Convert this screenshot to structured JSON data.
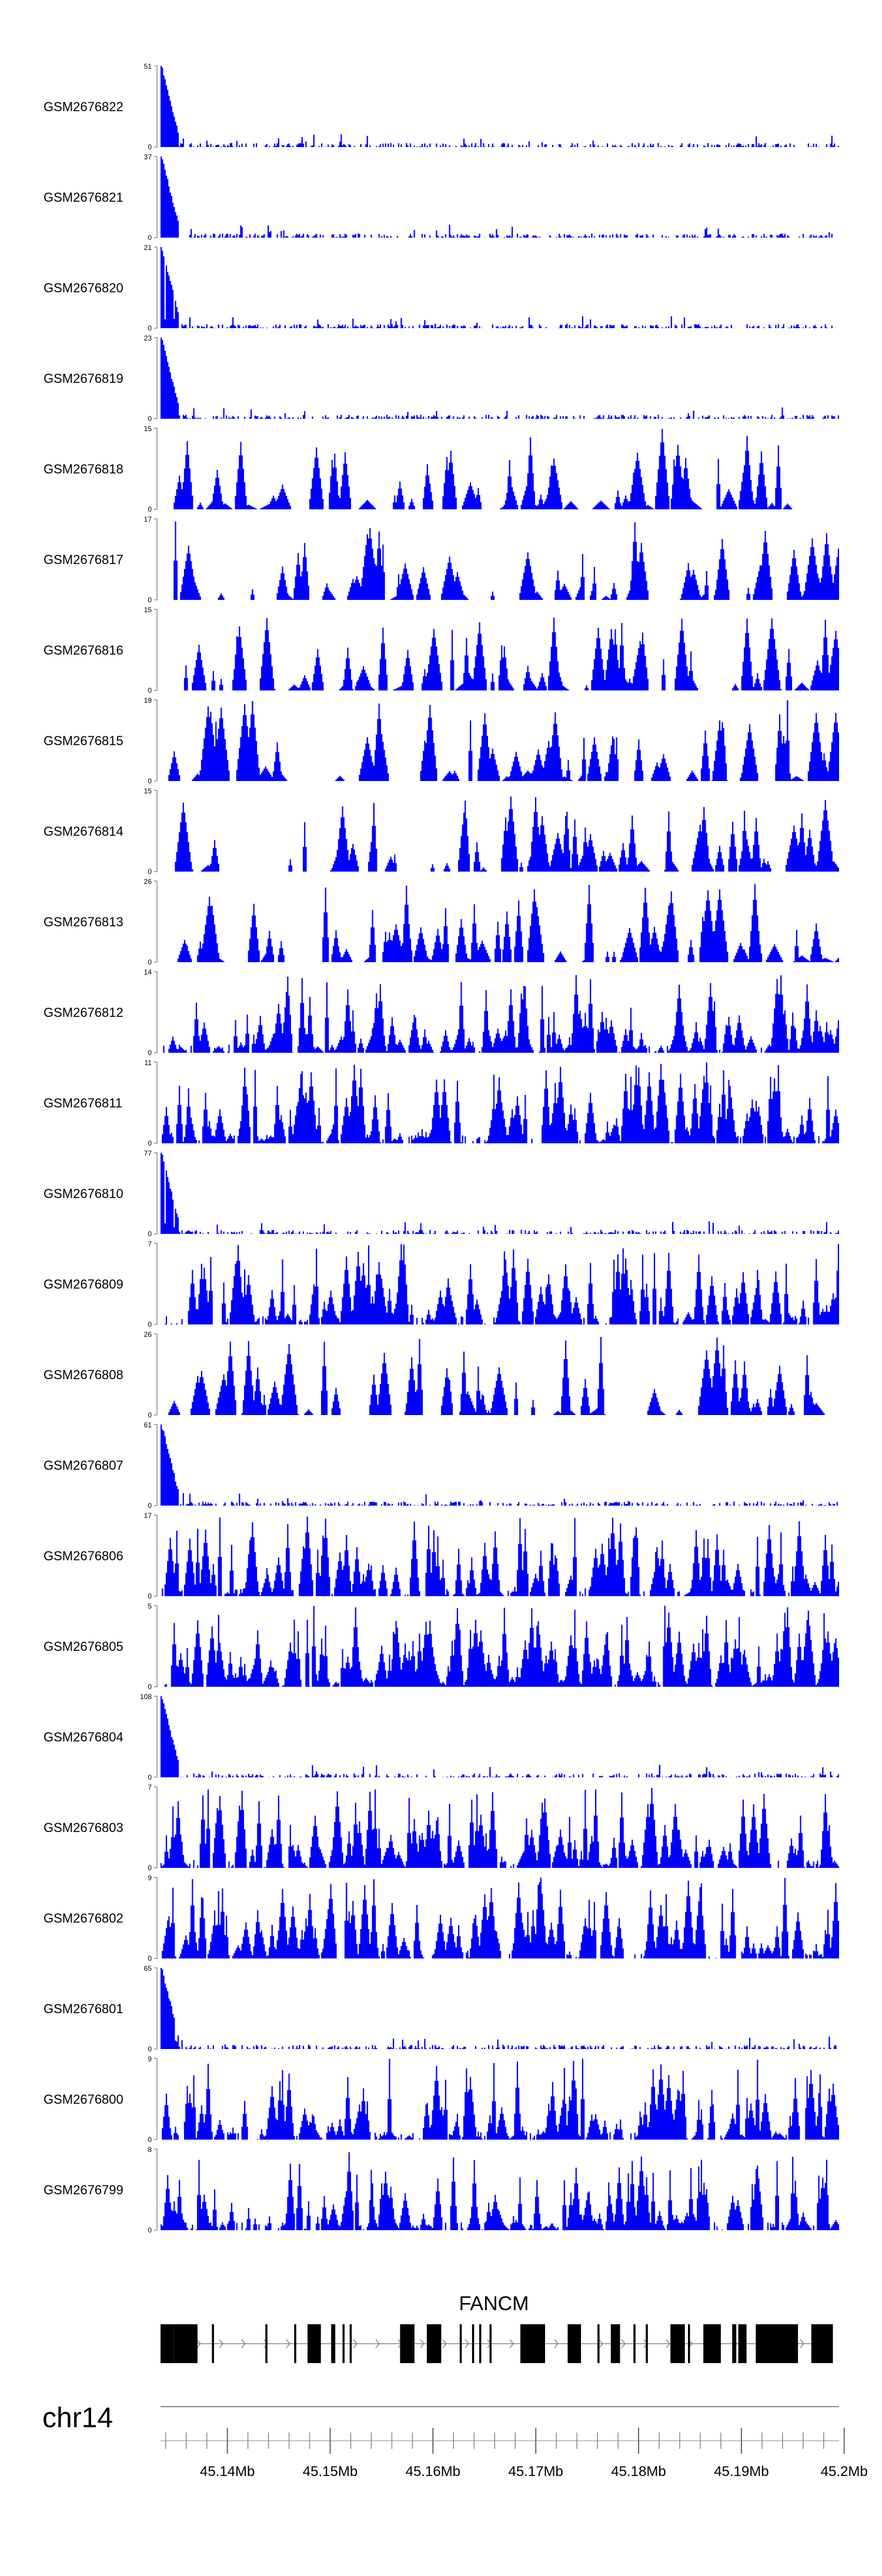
{
  "chart_data": {
    "type": "area",
    "genome_region": {
      "chromosome": "chr14",
      "x_unit": "Mb",
      "xlim": [
        45.1335,
        45.1995
      ],
      "ticks": [
        {
          "value": 45.14,
          "label": "45.14Mb"
        },
        {
          "value": 45.15,
          "label": "45.15Mb"
        },
        {
          "value": 45.16,
          "label": "45.16Mb"
        },
        {
          "value": 45.17,
          "label": "45.17Mb"
        },
        {
          "value": 45.18,
          "label": "45.18Mb"
        },
        {
          "value": 45.19,
          "label": "45.19Mb"
        },
        {
          "value": 45.2,
          "label": "45.2Mb"
        }
      ]
    },
    "fill_color": "#0000FF",
    "gene": {
      "name": "FANCM",
      "strand": "+",
      "exons_mb": [
        [
          45.1335,
          45.1348
        ],
        [
          45.1348,
          45.1371
        ],
        [
          45.1385,
          45.1387
        ],
        [
          45.1437,
          45.1439
        ],
        [
          45.1465,
          45.1467
        ],
        [
          45.1478,
          45.1491
        ],
        [
          45.1501,
          45.1505
        ],
        [
          45.1512,
          45.1514
        ],
        [
          45.1519,
          45.1521
        ],
        [
          45.1568,
          45.1582
        ],
        [
          45.1594,
          45.1608
        ],
        [
          45.1626,
          45.1628
        ],
        [
          45.1638,
          45.164
        ],
        [
          45.1645,
          45.1647
        ],
        [
          45.1655,
          45.1657
        ],
        [
          45.1685,
          45.1709
        ],
        [
          45.1731,
          45.1744
        ],
        [
          45.176,
          45.1762
        ],
        [
          45.1773,
          45.1782
        ],
        [
          45.1795,
          45.1797
        ],
        [
          45.1807,
          45.1809
        ],
        [
          45.1831,
          45.1845
        ],
        [
          45.1848,
          45.185
        ],
        [
          45.1863,
          45.188
        ],
        [
          45.1891,
          45.1895
        ],
        [
          45.1897,
          45.1905
        ],
        [
          45.1914,
          45.1936
        ],
        [
          45.1935,
          45.1955
        ],
        [
          45.1968,
          45.1989
        ]
      ]
    },
    "tracks": [
      {
        "name": "GSM2676822",
        "ymax": 51,
        "profile": "spike"
      },
      {
        "name": "GSM2676821",
        "ymax": 37,
        "profile": "spike"
      },
      {
        "name": "GSM2676820",
        "ymax": 21,
        "profile": "spike"
      },
      {
        "name": "GSM2676819",
        "ymax": 23,
        "profile": "spike"
      },
      {
        "name": "GSM2676818",
        "ymax": 15,
        "profile": "sparse"
      },
      {
        "name": "GSM2676817",
        "ymax": 17,
        "profile": "sparse"
      },
      {
        "name": "GSM2676816",
        "ymax": 15,
        "profile": "sparse"
      },
      {
        "name": "GSM2676815",
        "ymax": 19,
        "profile": "sparse"
      },
      {
        "name": "GSM2676814",
        "ymax": 15,
        "profile": "sparse"
      },
      {
        "name": "GSM2676813",
        "ymax": 26,
        "profile": "sparse"
      },
      {
        "name": "GSM2676812",
        "ymax": 14,
        "profile": "dense"
      },
      {
        "name": "GSM2676811",
        "ymax": 11,
        "profile": "dense"
      },
      {
        "name": "GSM2676810",
        "ymax": 77,
        "profile": "spike"
      },
      {
        "name": "GSM2676809",
        "ymax": 7,
        "profile": "dense"
      },
      {
        "name": "GSM2676808",
        "ymax": 26,
        "profile": "sparse"
      },
      {
        "name": "GSM2676807",
        "ymax": 61,
        "profile": "spike"
      },
      {
        "name": "GSM2676806",
        "ymax": 17,
        "profile": "dense"
      },
      {
        "name": "GSM2676805",
        "ymax": 5,
        "profile": "very-dense"
      },
      {
        "name": "GSM2676804",
        "ymax": 108,
        "profile": "spike"
      },
      {
        "name": "GSM2676803",
        "ymax": 7,
        "profile": "dense"
      },
      {
        "name": "GSM2676802",
        "ymax": 9,
        "profile": "dense"
      },
      {
        "name": "GSM2676801",
        "ymax": 65,
        "profile": "spike"
      },
      {
        "name": "GSM2676800",
        "ymax": 9,
        "profile": "dense"
      },
      {
        "name": "GSM2676799",
        "ymax": 8,
        "profile": "dense"
      }
    ]
  }
}
